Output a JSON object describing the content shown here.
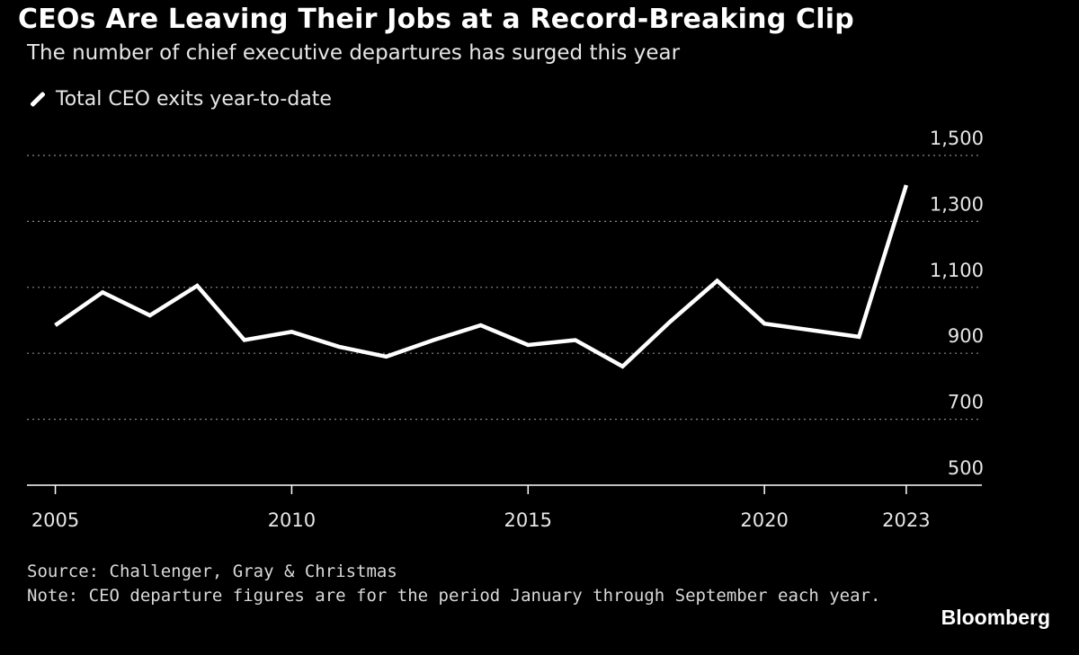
{
  "header": {
    "title": "CEOs Are Leaving Their Jobs at a Record-Breaking Clip",
    "subtitle": "The number of chief executive departures has surged this year"
  },
  "footer": {
    "source": "Source: Challenger, Gray & Christmas",
    "note": "Note: CEO departure figures are for the period January through September each year.",
    "brand": "Bloomberg"
  },
  "colors": {
    "background": "#000000",
    "line": "#ffffff",
    "grid": "#8a8a8a",
    "text": "#e6e6e6"
  },
  "chart_data": {
    "type": "line",
    "title": "CEOs Are Leaving Their Jobs at a Record-Breaking Clip",
    "subtitle": "The number of chief executive departures has surged this year",
    "xlabel": "",
    "ylabel": "",
    "xlim": [
      2004.4,
      2024.6
    ],
    "ylim": [
      500,
      1500
    ],
    "xticks": [
      2005,
      2010,
      2015,
      2020,
      2023
    ],
    "yticks": [
      500,
      700,
      900,
      1100,
      1300,
      1500
    ],
    "ytick_labels": [
      "500",
      "700",
      "900",
      "1,100",
      "1,300",
      "1,500"
    ],
    "grid": "horizontal dotted",
    "legend_position": "top-left",
    "series": [
      {
        "name": "Total CEO exits year-to-date",
        "x": [
          2005,
          2006,
          2007,
          2008,
          2009,
          2010,
          2011,
          2012,
          2013,
          2014,
          2015,
          2016,
          2017,
          2018,
          2019,
          2020,
          2022,
          2023
        ],
        "values": [
          985,
          1085,
          1015,
          1105,
          940,
          965,
          920,
          890,
          940,
          985,
          925,
          940,
          860,
          995,
          1120,
          990,
          950,
          1410
        ]
      }
    ]
  }
}
